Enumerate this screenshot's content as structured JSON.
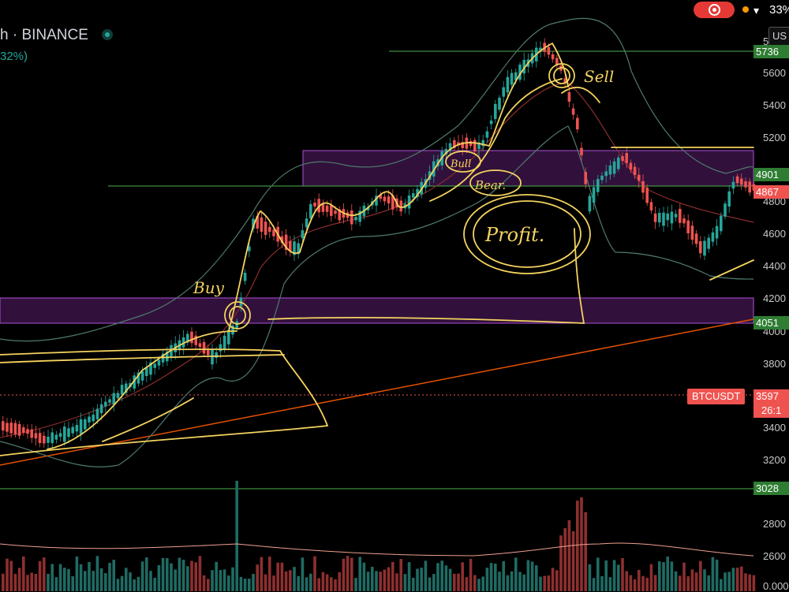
{
  "status_bar": {
    "battery": "33%",
    "record_icon": "record-icon",
    "wifi_icon": "wifi-icon"
  },
  "header": {
    "symbol": "h · BINANCE",
    "change": "32%)"
  },
  "currency_button": "US",
  "axis_labels": [
    "5",
    "5600",
    "5400",
    "5200",
    "4800",
    "4600",
    "4400",
    "4200",
    "4000",
    "3800",
    "3400",
    "3200",
    "2800",
    "2600",
    "0.000"
  ],
  "price_tags": [
    {
      "label": "5736",
      "color": "#2e7d32"
    },
    {
      "label": "4901",
      "color": "#2e7d32"
    },
    {
      "label": "4867",
      "color": "#ef5350"
    },
    {
      "label": "4051",
      "color": "#2e7d32"
    },
    {
      "label": "3597",
      "color": "#ef5350"
    },
    {
      "label": "3028",
      "color": "#2e7d32"
    }
  ],
  "btc_tag": "BTCUSDT",
  "countdown": "26:1",
  "annotations": {
    "buy": "Buy",
    "sell": "Sell",
    "bull": "Bull",
    "bear": "Bear.",
    "profit": "Profit."
  },
  "colors": {
    "up": "#26a69a",
    "down": "#ef5350",
    "highlight": "#f4d35e",
    "zone": "#9c27b0"
  }
}
